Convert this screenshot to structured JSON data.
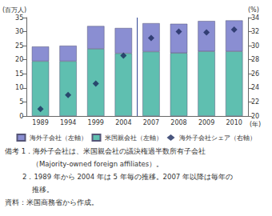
{
  "chart_data": {
    "type": "bar",
    "y_label": "(百万人)",
    "y2_label": "(%)",
    "x_label": "(年)",
    "categories": [
      "1989",
      "1994",
      "1999",
      "2004",
      "2007",
      "2008",
      "2009",
      "2010"
    ],
    "series": [
      {
        "name": "米国親会社（左軸）",
        "type": "bar",
        "color": "#5fbfb0",
        "values": [
          19.5,
          19.5,
          23.9,
          22.3,
          22.9,
          22.4,
          23.0,
          23.0
        ]
      },
      {
        "name": "海外子会社（左軸）",
        "type": "bar",
        "color": "#8a8ed2",
        "values": [
          5.2,
          5.5,
          8.1,
          9.0,
          10.1,
          10.4,
          10.8,
          11.0
        ]
      },
      {
        "name": "海外子会社シェア（右軸）",
        "type": "scatter",
        "marker": "diamond",
        "axis": "y2",
        "color": "#1c2a5c",
        "values": [
          21.0,
          23.0,
          24.6,
          28.6,
          31.1,
          32.0,
          31.9,
          32.3
        ]
      }
    ],
    "stacked": true,
    "ylim": [
      0,
      35
    ],
    "yticks": [
      0,
      5,
      10,
      15,
      20,
      25,
      30,
      35
    ],
    "y2lim": [
      20,
      34
    ],
    "y2ticks": [
      20,
      22,
      24,
      26,
      28,
      30,
      32,
      34
    ],
    "grid": false,
    "legend": "bottom",
    "annotations": [
      "備考 1．海外子会社は、米国親会社の議決権過半数所有子会社",
      "（Majority-owned foreign affiliates）。",
      "2．1989 年から 2004 年は 5 年毎の推移。2007 年以降は毎年の",
      "推移。",
      "資料：米国商務省から作成。"
    ]
  }
}
